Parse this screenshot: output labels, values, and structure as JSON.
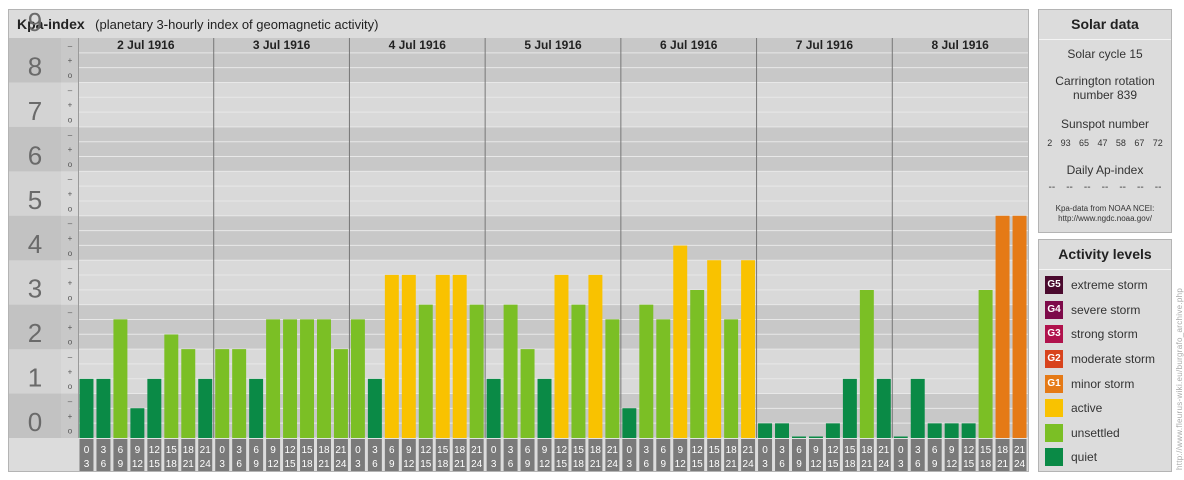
{
  "header": {
    "title": "Kpa-index",
    "subtitle": "(planetary 3-hourly index of geomagnetic activity)"
  },
  "chart_data": {
    "type": "bar",
    "ylim": [
      0,
      9
    ],
    "y_ticks": [
      "0",
      "1",
      "2",
      "3",
      "4",
      "5",
      "6",
      "7",
      "8",
      "9"
    ],
    "minor_ticks": [
      "o",
      "+",
      "–"
    ],
    "days": [
      "2 Jul 1916",
      "3 Jul 1916",
      "4 Jul 1916",
      "5 Jul 1916",
      "6 Jul 1916",
      "7 Jul 1916",
      "8 Jul 1916"
    ],
    "interval_start": [
      "0",
      "3",
      "6",
      "9",
      "12",
      "15",
      "18",
      "21"
    ],
    "interval_end": [
      "3",
      "6",
      "9",
      "12",
      "15",
      "18",
      "21",
      "24"
    ],
    "values": [
      1.33,
      1.33,
      2.67,
      0.67,
      1.33,
      2.33,
      2.0,
      1.33,
      2.0,
      2.0,
      1.33,
      2.67,
      2.67,
      2.67,
      2.67,
      2.0,
      2.67,
      1.33,
      3.67,
      3.67,
      3.0,
      3.67,
      3.67,
      3.0,
      1.33,
      3.0,
      2.0,
      1.33,
      3.67,
      3.0,
      3.67,
      2.67,
      0.67,
      3.0,
      2.67,
      4.33,
      3.33,
      4.0,
      2.67,
      4.0,
      0.33,
      0.33,
      0.0,
      0.0,
      0.33,
      1.33,
      3.33,
      1.33,
      0.0,
      1.33,
      0.33,
      0.33,
      0.33,
      3.33,
      5.0,
      5.0
    ],
    "level_colors": {
      "quiet": "#0a8a46",
      "unsettled": "#7bbf25",
      "active": "#f9c200",
      "minor_storm": "#e57a16"
    }
  },
  "solar": {
    "title": "Solar data",
    "solar_cycle": "Solar cycle 15",
    "carrington": "Carrington rotation number 839",
    "sunspot_title": "Sunspot number",
    "sunspot_values": [
      "2",
      "93",
      "65",
      "47",
      "58",
      "67",
      "72"
    ],
    "ap_title": "Daily Ap-index",
    "ap_values": [
      "--",
      "--",
      "--",
      "--",
      "--",
      "--",
      "--"
    ],
    "source_line1": "Kpa-data from NOAA NCEI:",
    "source_line2": "http://www.ngdc.noaa.gov/"
  },
  "levels": {
    "title": "Activity levels",
    "items": [
      {
        "code": "G5",
        "label": "extreme storm",
        "color": "#4a0a2e"
      },
      {
        "code": "G4",
        "label": "severe storm",
        "color": "#7d0a4a"
      },
      {
        "code": "G3",
        "label": "strong storm",
        "color": "#b0124c"
      },
      {
        "code": "G2",
        "label": "moderate storm",
        "color": "#d8431c"
      },
      {
        "code": "G1",
        "label": "minor storm",
        "color": "#e57a16"
      },
      {
        "code": "",
        "label": "active",
        "color": "#f9c200"
      },
      {
        "code": "",
        "label": "unsettled",
        "color": "#7bbf25"
      },
      {
        "code": "",
        "label": "quiet",
        "color": "#0a8a46"
      }
    ]
  },
  "watermark": "http://www.fleurus-wiki.eu/burgrafo_archive.php"
}
